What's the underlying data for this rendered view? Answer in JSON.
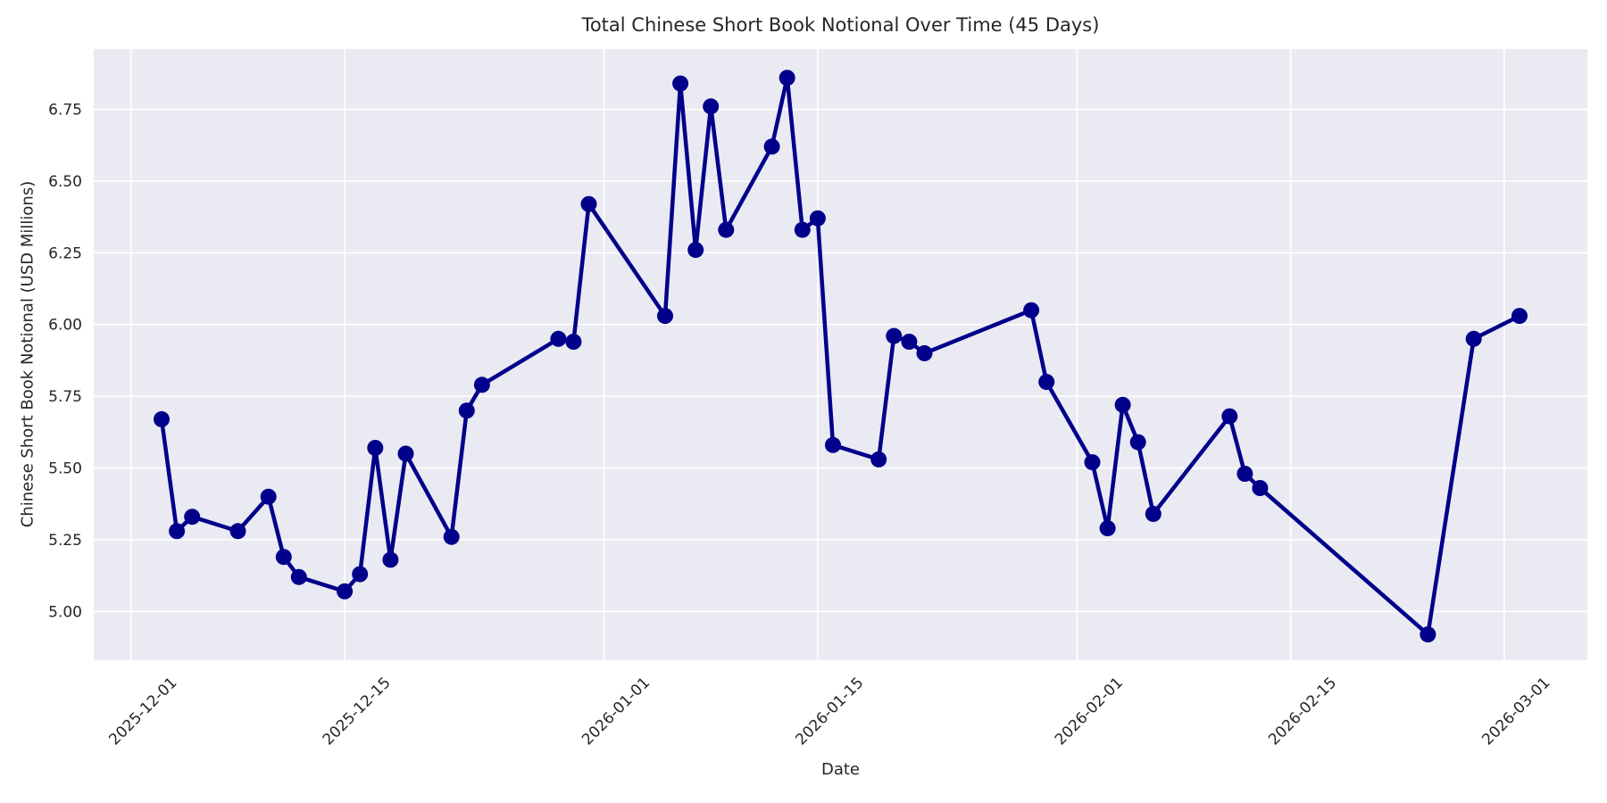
{
  "title": "Total Chinese Short Book Notional Over Time (45 Days)",
  "x_axis_label": "Date",
  "y_axis_label": "Chinese Short Book Notional (USD Millions)",
  "colors": {
    "line": "#00008B",
    "marker": "#00008B",
    "plot_background": "#EAEAF2",
    "grid": "#FFFFFF",
    "figure_background": "#FFFFFF",
    "text": "#262626"
  },
  "chart_data": {
    "type": "line",
    "title": "Total Chinese Short Book Notional Over Time (45 Days)",
    "xlabel": "Date",
    "ylabel": "Chinese Short Book Notional (USD Millions)",
    "legend": false,
    "grid": true,
    "marker": "circle",
    "x": [
      "2025-12-03",
      "2025-12-04",
      "2025-12-05",
      "2025-12-08",
      "2025-12-10",
      "2025-12-11",
      "2025-12-12",
      "2025-12-15",
      "2025-12-16",
      "2025-12-17",
      "2025-12-18",
      "2025-12-19",
      "2025-12-22",
      "2025-12-23",
      "2025-12-24",
      "2025-12-29",
      "2025-12-30",
      "2025-12-31",
      "2026-01-05",
      "2026-01-06",
      "2026-01-07",
      "2026-01-08",
      "2026-01-09",
      "2026-01-12",
      "2026-01-13",
      "2026-01-14",
      "2026-01-15",
      "2026-01-16",
      "2026-01-19",
      "2026-01-20",
      "2026-01-21",
      "2026-01-22",
      "2026-01-29",
      "2026-01-30",
      "2026-02-02",
      "2026-02-03",
      "2026-02-04",
      "2026-02-05",
      "2026-02-06",
      "2026-02-11",
      "2026-02-12",
      "2026-02-13",
      "2026-02-24",
      "2026-02-27",
      "2026-03-02"
    ],
    "y": [
      5.67,
      5.28,
      5.33,
      5.28,
      5.4,
      5.19,
      5.12,
      5.07,
      5.13,
      5.57,
      5.18,
      5.55,
      5.26,
      5.7,
      5.79,
      5.95,
      5.94,
      6.42,
      6.03,
      6.84,
      6.26,
      6.76,
      6.33,
      6.62,
      6.86,
      6.33,
      6.37,
      5.58,
      5.53,
      5.96,
      5.94,
      5.9,
      6.05,
      5.8,
      5.52,
      5.29,
      5.72,
      5.59,
      5.34,
      5.68,
      5.48,
      5.43,
      4.92,
      5.95,
      6.03
    ],
    "x_ticks": [
      "2025-12-01",
      "2025-12-15",
      "2026-01-01",
      "2026-01-15",
      "2026-02-01",
      "2026-02-15",
      "2026-03-01"
    ],
    "y_ticks": [
      5.0,
      5.25,
      5.5,
      5.75,
      6.0,
      6.25,
      6.5,
      6.75
    ],
    "ylim": [
      4.83,
      6.96
    ],
    "xlim_days_from_first_tick": [
      -2.45,
      95.45
    ],
    "x_tick_rotation_deg": 45
  }
}
